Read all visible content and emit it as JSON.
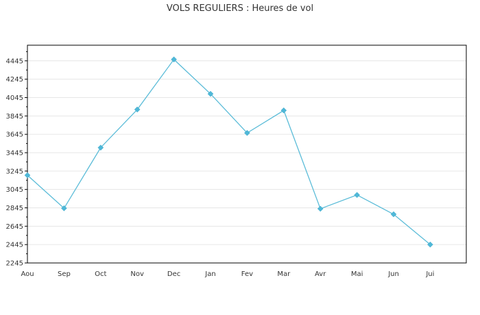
{
  "chart_data": {
    "type": "line",
    "title": "VOLS REGULIERS : Heures de vol",
    "xlabel": "",
    "ylabel": "",
    "categories": [
      "Aou",
      "Sep",
      "Oct",
      "Nov",
      "Dec",
      "Jan",
      "Fev",
      "Mar",
      "Avr",
      "Mai",
      "Jun",
      "Jui"
    ],
    "series": [
      {
        "values": [
          3200,
          2840,
          3500,
          3915,
          4460,
          4085,
          3660,
          3905,
          2835,
          2985,
          2775,
          2445
        ]
      }
    ],
    "yticks": [
      2245,
      2445,
      2645,
      2845,
      3045,
      3245,
      3445,
      3645,
      3845,
      4045,
      4245,
      4445
    ],
    "ylim": [
      2245,
      4615
    ],
    "grid": true,
    "colors": {
      "line": "#5bbcd8",
      "marker": "#4fb8d8",
      "grid": "#e6e6e6",
      "axis": "#000000"
    }
  }
}
